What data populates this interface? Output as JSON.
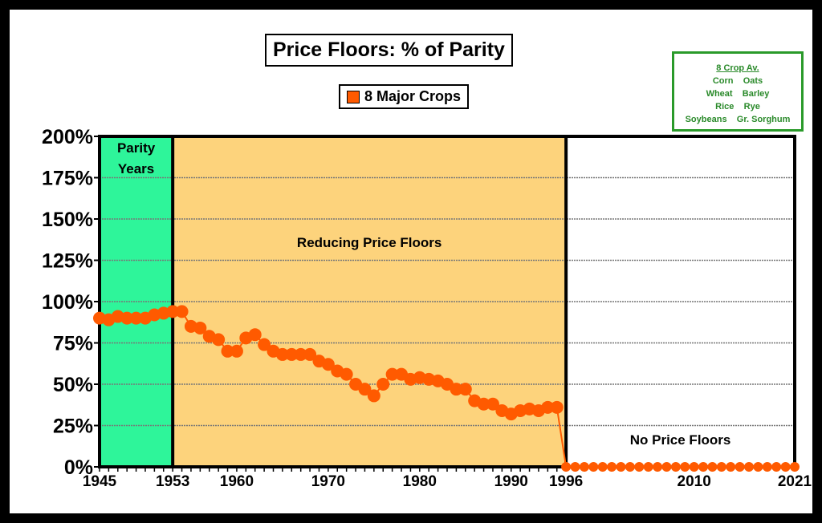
{
  "chart_data": {
    "type": "line",
    "title": "Price Floors:  % of Parity",
    "legend": [
      "8 Major Crops"
    ],
    "series": [
      {
        "name": "8 Major Crops",
        "color": "#ff5a00",
        "x": [
          1945,
          1946,
          1947,
          1948,
          1949,
          1950,
          1951,
          1952,
          1953,
          1954,
          1955,
          1956,
          1957,
          1958,
          1959,
          1960,
          1961,
          1962,
          1963,
          1964,
          1965,
          1966,
          1967,
          1968,
          1969,
          1970,
          1971,
          1972,
          1973,
          1974,
          1975,
          1976,
          1977,
          1978,
          1979,
          1980,
          1981,
          1982,
          1983,
          1984,
          1985,
          1986,
          1987,
          1988,
          1989,
          1990,
          1991,
          1992,
          1993,
          1994,
          1995,
          1996,
          1997,
          1998,
          1999,
          2000,
          2001,
          2002,
          2003,
          2004,
          2005,
          2006,
          2007,
          2008,
          2009,
          2010,
          2011,
          2012,
          2013,
          2014,
          2015,
          2016,
          2017,
          2018,
          2019,
          2020,
          2021
        ],
        "values": [
          90,
          89,
          91,
          90,
          90,
          90,
          92,
          93,
          94,
          94,
          85,
          84,
          79,
          77,
          70,
          70,
          78,
          80,
          74,
          70,
          68,
          68,
          68,
          68,
          64,
          62,
          58,
          56,
          50,
          47,
          43,
          50,
          56,
          56,
          53,
          54,
          53,
          52,
          50,
          47,
          47,
          40,
          38,
          38,
          34,
          32,
          34,
          35,
          34,
          36,
          36,
          0,
          0,
          0,
          0,
          0,
          0,
          0,
          0,
          0,
          0,
          0,
          0,
          0,
          0,
          0,
          0,
          0,
          0,
          0,
          0,
          0,
          0,
          0,
          0,
          0,
          0
        ]
      }
    ],
    "xlim": [
      1945,
      2021
    ],
    "ylim": [
      0,
      200
    ],
    "xticks": [
      "1945",
      "1953",
      "1960",
      "1970",
      "1980",
      "1990",
      "1996",
      "2010",
      "2021"
    ],
    "yticks": [
      "0%",
      "25%",
      "50%",
      "75%",
      "100%",
      "125%",
      "150%",
      "175%",
      "200%"
    ],
    "grid": true,
    "regions": [
      {
        "label": "Parity Years",
        "from": 1945,
        "to": 1953,
        "color": "#2ef59a"
      },
      {
        "label": "Reducing Price Floors",
        "from": 1953,
        "to": 1996,
        "color": "#fdd37c"
      },
      {
        "label": "No Price Floors",
        "from": 1996,
        "to": 2021,
        "color": "#ffffff"
      }
    ],
    "crop_box": {
      "heading": "8 Crop Av.",
      "rows": [
        "Corn    Oats",
        "Wheat    Barley",
        "Rice    Rye",
        "Soybeans    Gr. Sorghum"
      ]
    }
  }
}
